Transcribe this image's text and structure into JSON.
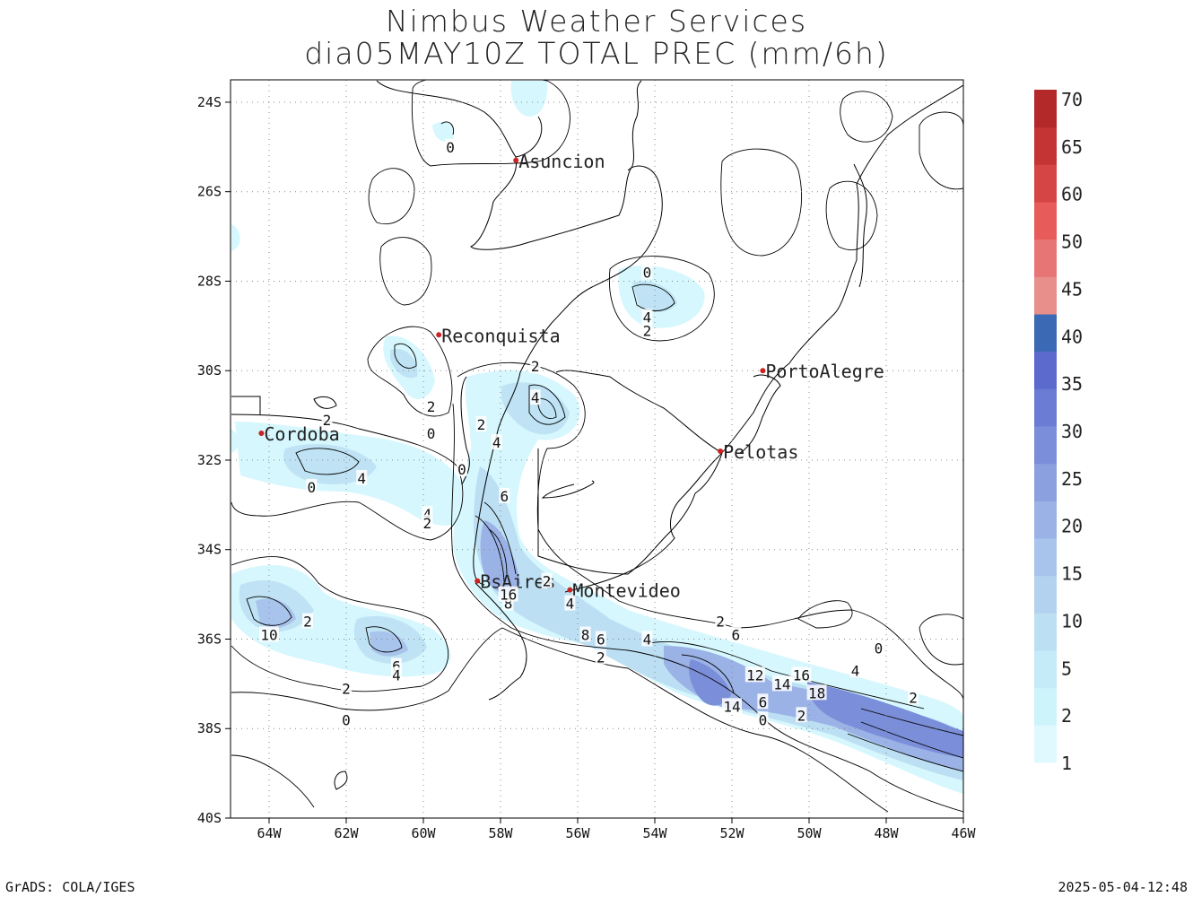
{
  "titles": {
    "line1": "Nimbus Weather Services",
    "line2": "dia05MAY10Z TOTAL PREC (mm/6h)"
  },
  "map": {
    "lon_range": [
      -65,
      -46
    ],
    "lat_range": [
      -40,
      -23.5
    ],
    "lon_ticks": [
      "64W",
      "62W",
      "60W",
      "58W",
      "56W",
      "54W",
      "52W",
      "50W",
      "48W",
      "46W"
    ],
    "lat_ticks": [
      "24S",
      "26S",
      "28S",
      "30S",
      "32S",
      "34S",
      "36S",
      "38S",
      "40S"
    ],
    "cities": [
      {
        "name": "Asuncion",
        "lon": -57.6,
        "lat": -25.3
      },
      {
        "name": "Reconquista",
        "lon": -59.6,
        "lat": -29.2
      },
      {
        "name": "PortoAlegre",
        "lon": -51.2,
        "lat": -30.0
      },
      {
        "name": "Cordoba",
        "lon": -64.2,
        "lat": -31.4
      },
      {
        "name": "Pelotas",
        "lon": -52.3,
        "lat": -31.8
      },
      {
        "name": "BsAires",
        "lon": -58.6,
        "lat": -34.7
      },
      {
        "name": "Montevideo",
        "lon": -56.2,
        "lat": -34.9
      }
    ],
    "contour_labels": [
      {
        "t": "0",
        "lon": -59.3,
        "lat": -25.0
      },
      {
        "t": "0",
        "lon": -54.2,
        "lat": -27.8
      },
      {
        "t": "4",
        "lon": -54.2,
        "lat": -28.8
      },
      {
        "t": "2",
        "lon": -54.2,
        "lat": -29.1
      },
      {
        "t": "2",
        "lon": -57.1,
        "lat": -29.9
      },
      {
        "t": "4",
        "lon": -57.1,
        "lat": -30.6
      },
      {
        "t": "2",
        "lon": -59.8,
        "lat": -30.8
      },
      {
        "t": "0",
        "lon": -59.8,
        "lat": -31.4
      },
      {
        "t": "2",
        "lon": -62.5,
        "lat": -31.1
      },
      {
        "t": "2",
        "lon": -58.5,
        "lat": -31.2
      },
      {
        "t": "4",
        "lon": -58.1,
        "lat": -31.6
      },
      {
        "t": "0",
        "lon": -59.0,
        "lat": -32.2
      },
      {
        "t": "4",
        "lon": -61.6,
        "lat": -32.4
      },
      {
        "t": "0",
        "lon": -62.9,
        "lat": -32.6
      },
      {
        "t": "6",
        "lon": -57.9,
        "lat": -32.8
      },
      {
        "t": "4",
        "lon": -59.9,
        "lat": -33.2
      },
      {
        "t": "2",
        "lon": -59.9,
        "lat": -33.4
      },
      {
        "t": "2",
        "lon": -56.8,
        "lat": -34.7
      },
      {
        "t": "4",
        "lon": -56.2,
        "lat": -35.2
      },
      {
        "t": "8",
        "lon": -57.8,
        "lat": -35.2
      },
      {
        "t": "16",
        "lon": -57.8,
        "lat": -35.0
      },
      {
        "t": "2",
        "lon": -63.0,
        "lat": -35.6
      },
      {
        "t": "10",
        "lon": -64.0,
        "lat": -35.9
      },
      {
        "t": "8",
        "lon": -55.8,
        "lat": -35.9
      },
      {
        "t": "6",
        "lon": -55.4,
        "lat": -36.0
      },
      {
        "t": "4",
        "lon": -54.2,
        "lat": -36.0
      },
      {
        "t": "2",
        "lon": -55.4,
        "lat": -36.4
      },
      {
        "t": "2",
        "lon": -52.3,
        "lat": -35.6
      },
      {
        "t": "6",
        "lon": -51.9,
        "lat": -35.9
      },
      {
        "t": "0",
        "lon": -48.2,
        "lat": -36.2
      },
      {
        "t": "4",
        "lon": -48.8,
        "lat": -36.7
      },
      {
        "t": "6",
        "lon": -60.7,
        "lat": -36.6
      },
      {
        "t": "4",
        "lon": -60.7,
        "lat": -36.8
      },
      {
        "t": "2",
        "lon": -62.0,
        "lat": -37.1
      },
      {
        "t": "12",
        "lon": -51.4,
        "lat": -36.8
      },
      {
        "t": "14",
        "lon": -50.7,
        "lat": -37.0
      },
      {
        "t": "16",
        "lon": -50.2,
        "lat": -36.8
      },
      {
        "t": "18",
        "lon": -49.8,
        "lat": -37.2
      },
      {
        "t": "14",
        "lon": -52.0,
        "lat": -37.5
      },
      {
        "t": "6",
        "lon": -51.2,
        "lat": -37.4
      },
      {
        "t": "0",
        "lon": -51.2,
        "lat": -37.8
      },
      {
        "t": "2",
        "lon": -50.2,
        "lat": -37.7
      },
      {
        "t": "2",
        "lon": -47.3,
        "lat": -37.3
      },
      {
        "t": "0",
        "lon": -62.0,
        "lat": -37.8
      }
    ]
  },
  "legend": {
    "labels": [
      "1",
      "2",
      "5",
      "10",
      "15",
      "20",
      "25",
      "30",
      "35",
      "40",
      "45",
      "50",
      "60",
      "65",
      "70"
    ],
    "colors": [
      "#dff9ff",
      "#cdf3fb",
      "#c4ebf7",
      "#bcdff3",
      "#b3d2ef",
      "#a9c4ec",
      "#9bb2e6",
      "#8aa0df",
      "#7b8ed9",
      "#6a7cd3",
      "#5b6acc",
      "#3c69b4",
      "#e88f8b",
      "#e77575",
      "#e75b5b",
      "#d64545",
      "#c43434",
      "#b32828"
    ]
  },
  "footer": {
    "left": "GrADS: COLA/IGES",
    "right": "2025-05-04-12:48"
  }
}
